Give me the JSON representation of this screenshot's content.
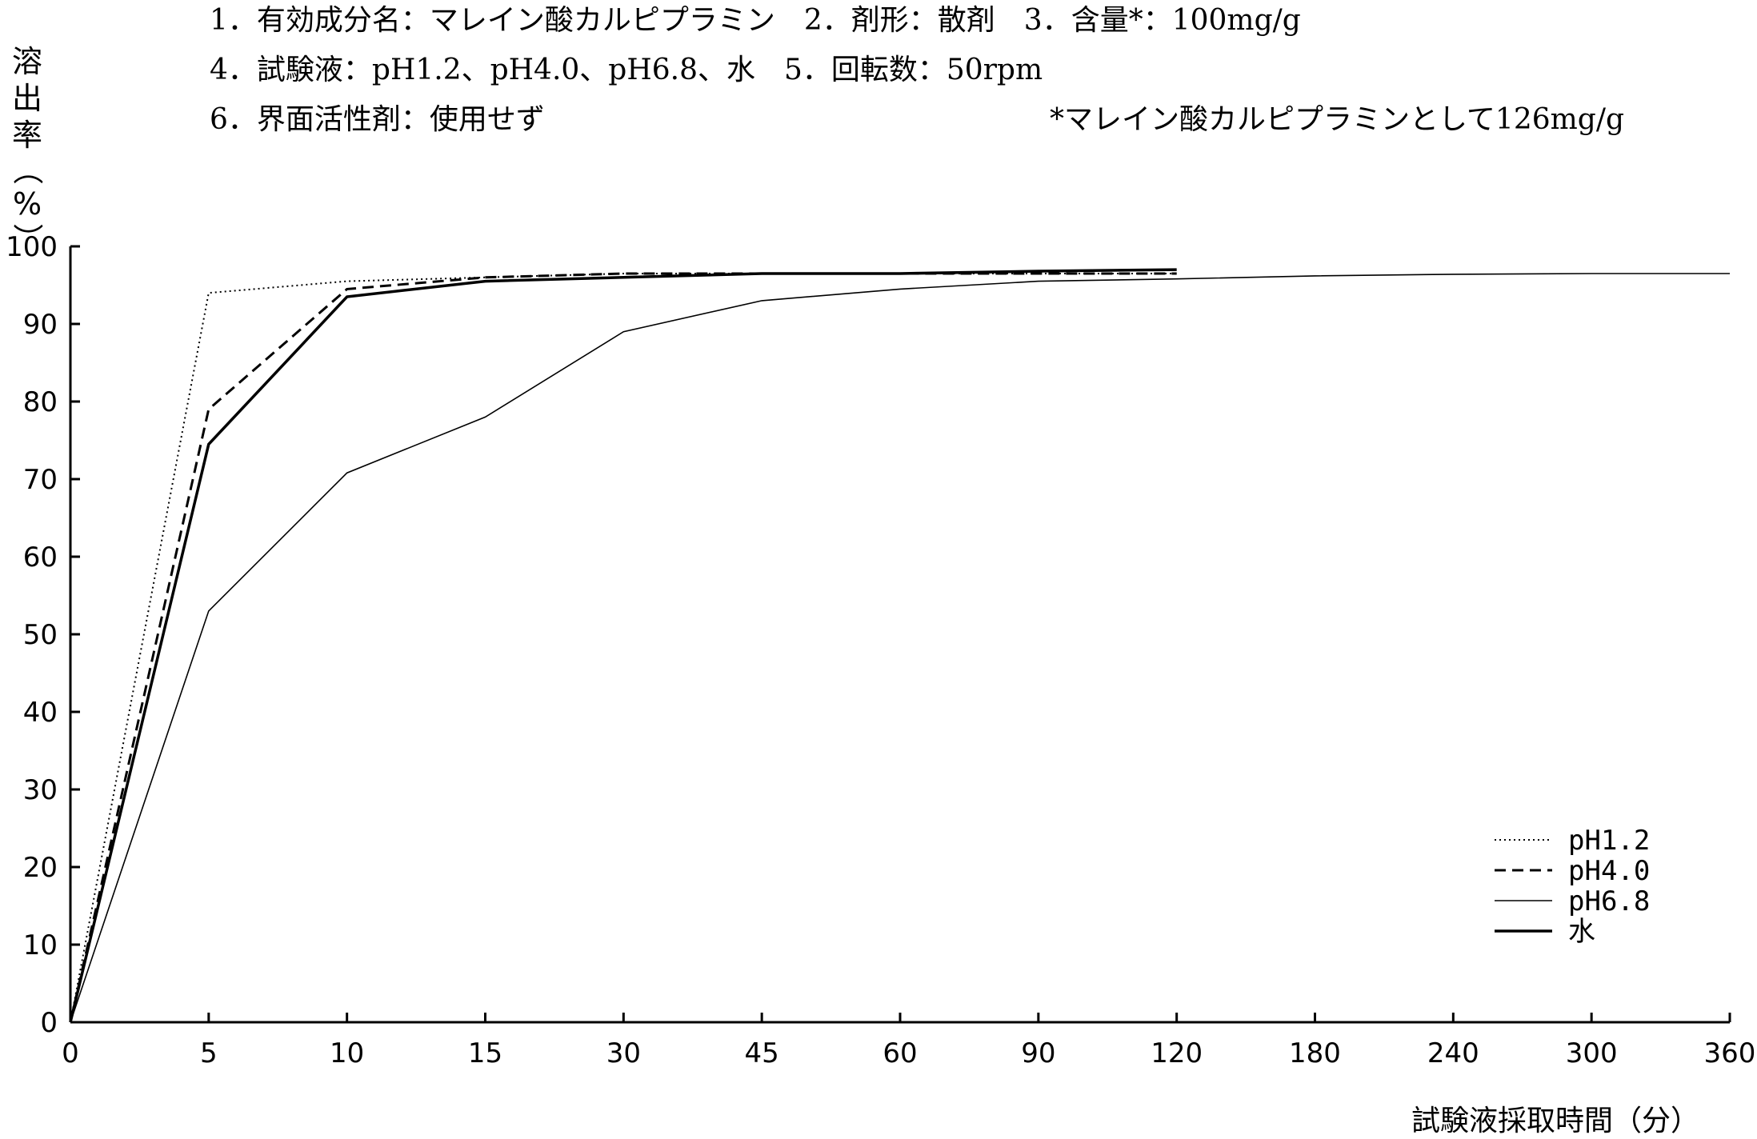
{
  "header": {
    "line1_left": "1．有効成分名：マレイン酸カルピプラミン　2．剤形：散剤　3．含量*：100mg/g",
    "line2": "4．試験液：pH1.2、pH4.0、pH6.8、水　5．回転数：50rpm",
    "line3_left": "6．界面活性剤：使用せず",
    "line3_right": "*マレイン酸カルピプラミンとして126mg/g"
  },
  "chart_data": {
    "type": "line",
    "title": "",
    "ylabel": "溶出率（%）",
    "ylabel_chars": [
      "溶",
      "出",
      "率",
      "（",
      "%",
      "）"
    ],
    "xlabel": "試験液採取時間（分）",
    "ylim": [
      0,
      100
    ],
    "y_ticks": [
      "0",
      "10",
      "20",
      "30",
      "40",
      "50",
      "60",
      "70",
      "80",
      "90",
      "100"
    ],
    "categories": [
      "0",
      "5",
      "10",
      "15",
      "30",
      "45",
      "60",
      "90",
      "120",
      "180",
      "240",
      "300",
      "360"
    ],
    "series": [
      {
        "name": "pH1.2",
        "style": "dotted",
        "values": [
          0,
          94,
          95.5,
          96,
          96.5,
          96.5,
          96.5,
          96.5,
          96.5,
          null,
          null,
          null,
          null
        ]
      },
      {
        "name": "pH4.0",
        "style": "dashed",
        "values": [
          0,
          79,
          94.5,
          96,
          96.5,
          96.5,
          96.5,
          96.5,
          96.5,
          null,
          null,
          null,
          null
        ]
      },
      {
        "name": "pH6.8",
        "style": "thin",
        "values": [
          0,
          53,
          70.8,
          78,
          89,
          93,
          94.5,
          95.5,
          95.8,
          96.2,
          96.4,
          96.5,
          96.5
        ]
      },
      {
        "name": "水",
        "style": "thick",
        "values": [
          0,
          74.5,
          93.5,
          95.5,
          96,
          96.5,
          96.5,
          96.8,
          97,
          null,
          null,
          null,
          null
        ]
      }
    ],
    "legend_position": "bottom-right",
    "grid": false
  }
}
